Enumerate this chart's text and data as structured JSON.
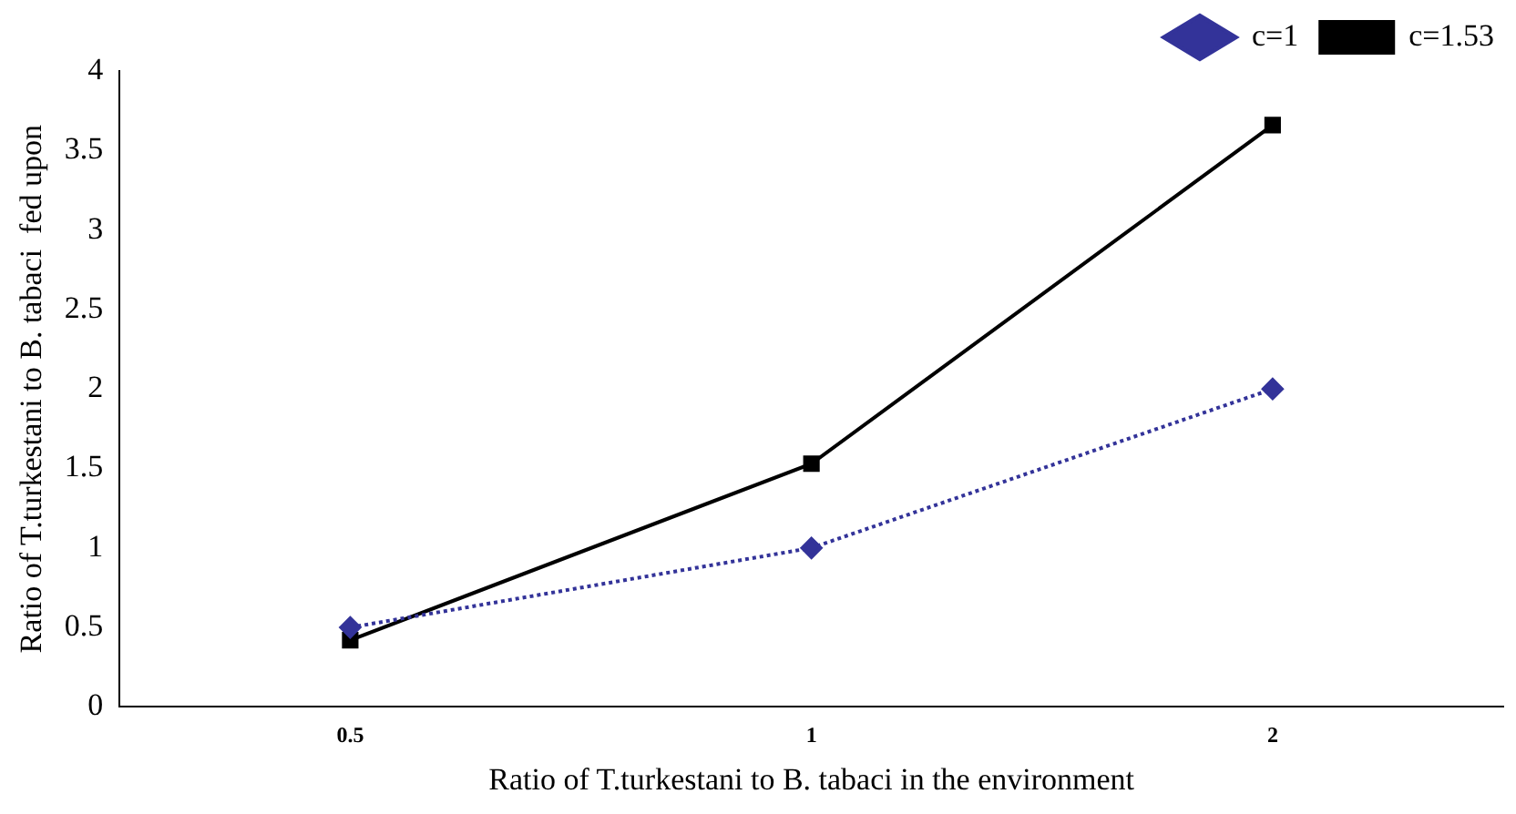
{
  "chart_data": {
    "type": "line",
    "xlabel": "Ratio of T.turkestani to B. tabaci in the environment",
    "ylabel": "Ratio of T.turkestani to B. tabaci  fed upon",
    "categories": [
      "0.5",
      "1",
      "2"
    ],
    "series": [
      {
        "name": "c=1",
        "color": "#333399",
        "values": [
          0.5,
          1,
          2
        ],
        "marker": "diamond",
        "line_style": "dotted"
      },
      {
        "name": "c=1.53",
        "color": "#000000",
        "values": [
          0.42,
          1.53,
          3.66
        ],
        "marker": "square",
        "line_style": "solid"
      }
    ],
    "ylim": [
      0,
      4
    ],
    "yticks": [
      0,
      0.5,
      1,
      1.5,
      2,
      2.5,
      3,
      3.5,
      4
    ],
    "grid": false,
    "legend": "top right"
  }
}
